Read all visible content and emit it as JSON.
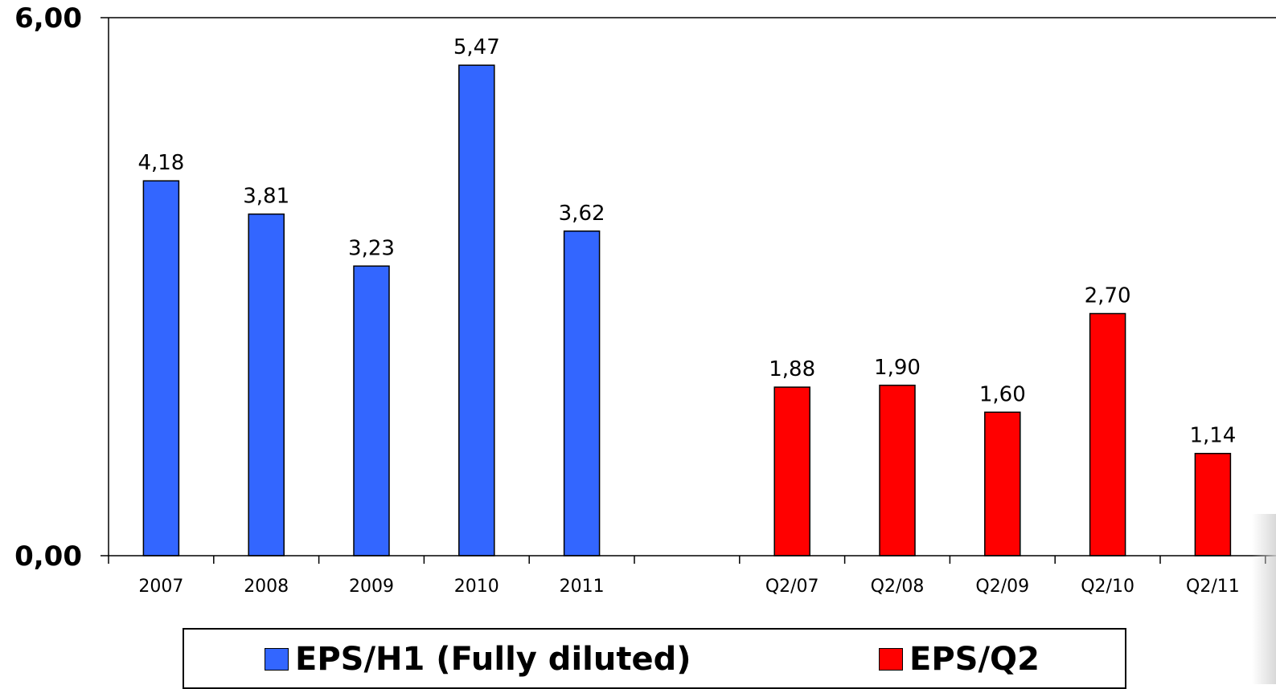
{
  "chart_data": {
    "type": "bar",
    "title": "",
    "xlabel": "",
    "ylabel": "",
    "ylim": [
      0,
      6
    ],
    "yticks": [
      "0,00",
      "6,00"
    ],
    "grid": false,
    "legend_position": "bottom",
    "categories": [
      "2007",
      "2008",
      "2009",
      "2010",
      "2011",
      "",
      "Q2/07",
      "Q2/08",
      "Q2/09",
      "Q2/10",
      "Q2/11"
    ],
    "series": [
      {
        "name": "EPS/H1 (Fully diluted)",
        "color": "#3366FF",
        "values": [
          4.18,
          3.81,
          3.23,
          5.47,
          3.62,
          null,
          null,
          null,
          null,
          null,
          null
        ],
        "labels": [
          "4,18",
          "3,81",
          "3,23",
          "5,47",
          "3,62",
          "",
          "",
          "",
          "",
          "",
          ""
        ]
      },
      {
        "name": "EPS/Q2",
        "color": "#FF0000",
        "values": [
          null,
          null,
          null,
          null,
          null,
          null,
          1.88,
          1.9,
          1.6,
          2.7,
          1.14
        ],
        "labels": [
          "",
          "",
          "",
          "",
          "",
          "",
          "1,88",
          "1,90",
          "1,60",
          "2,70",
          "1,14"
        ]
      }
    ]
  }
}
